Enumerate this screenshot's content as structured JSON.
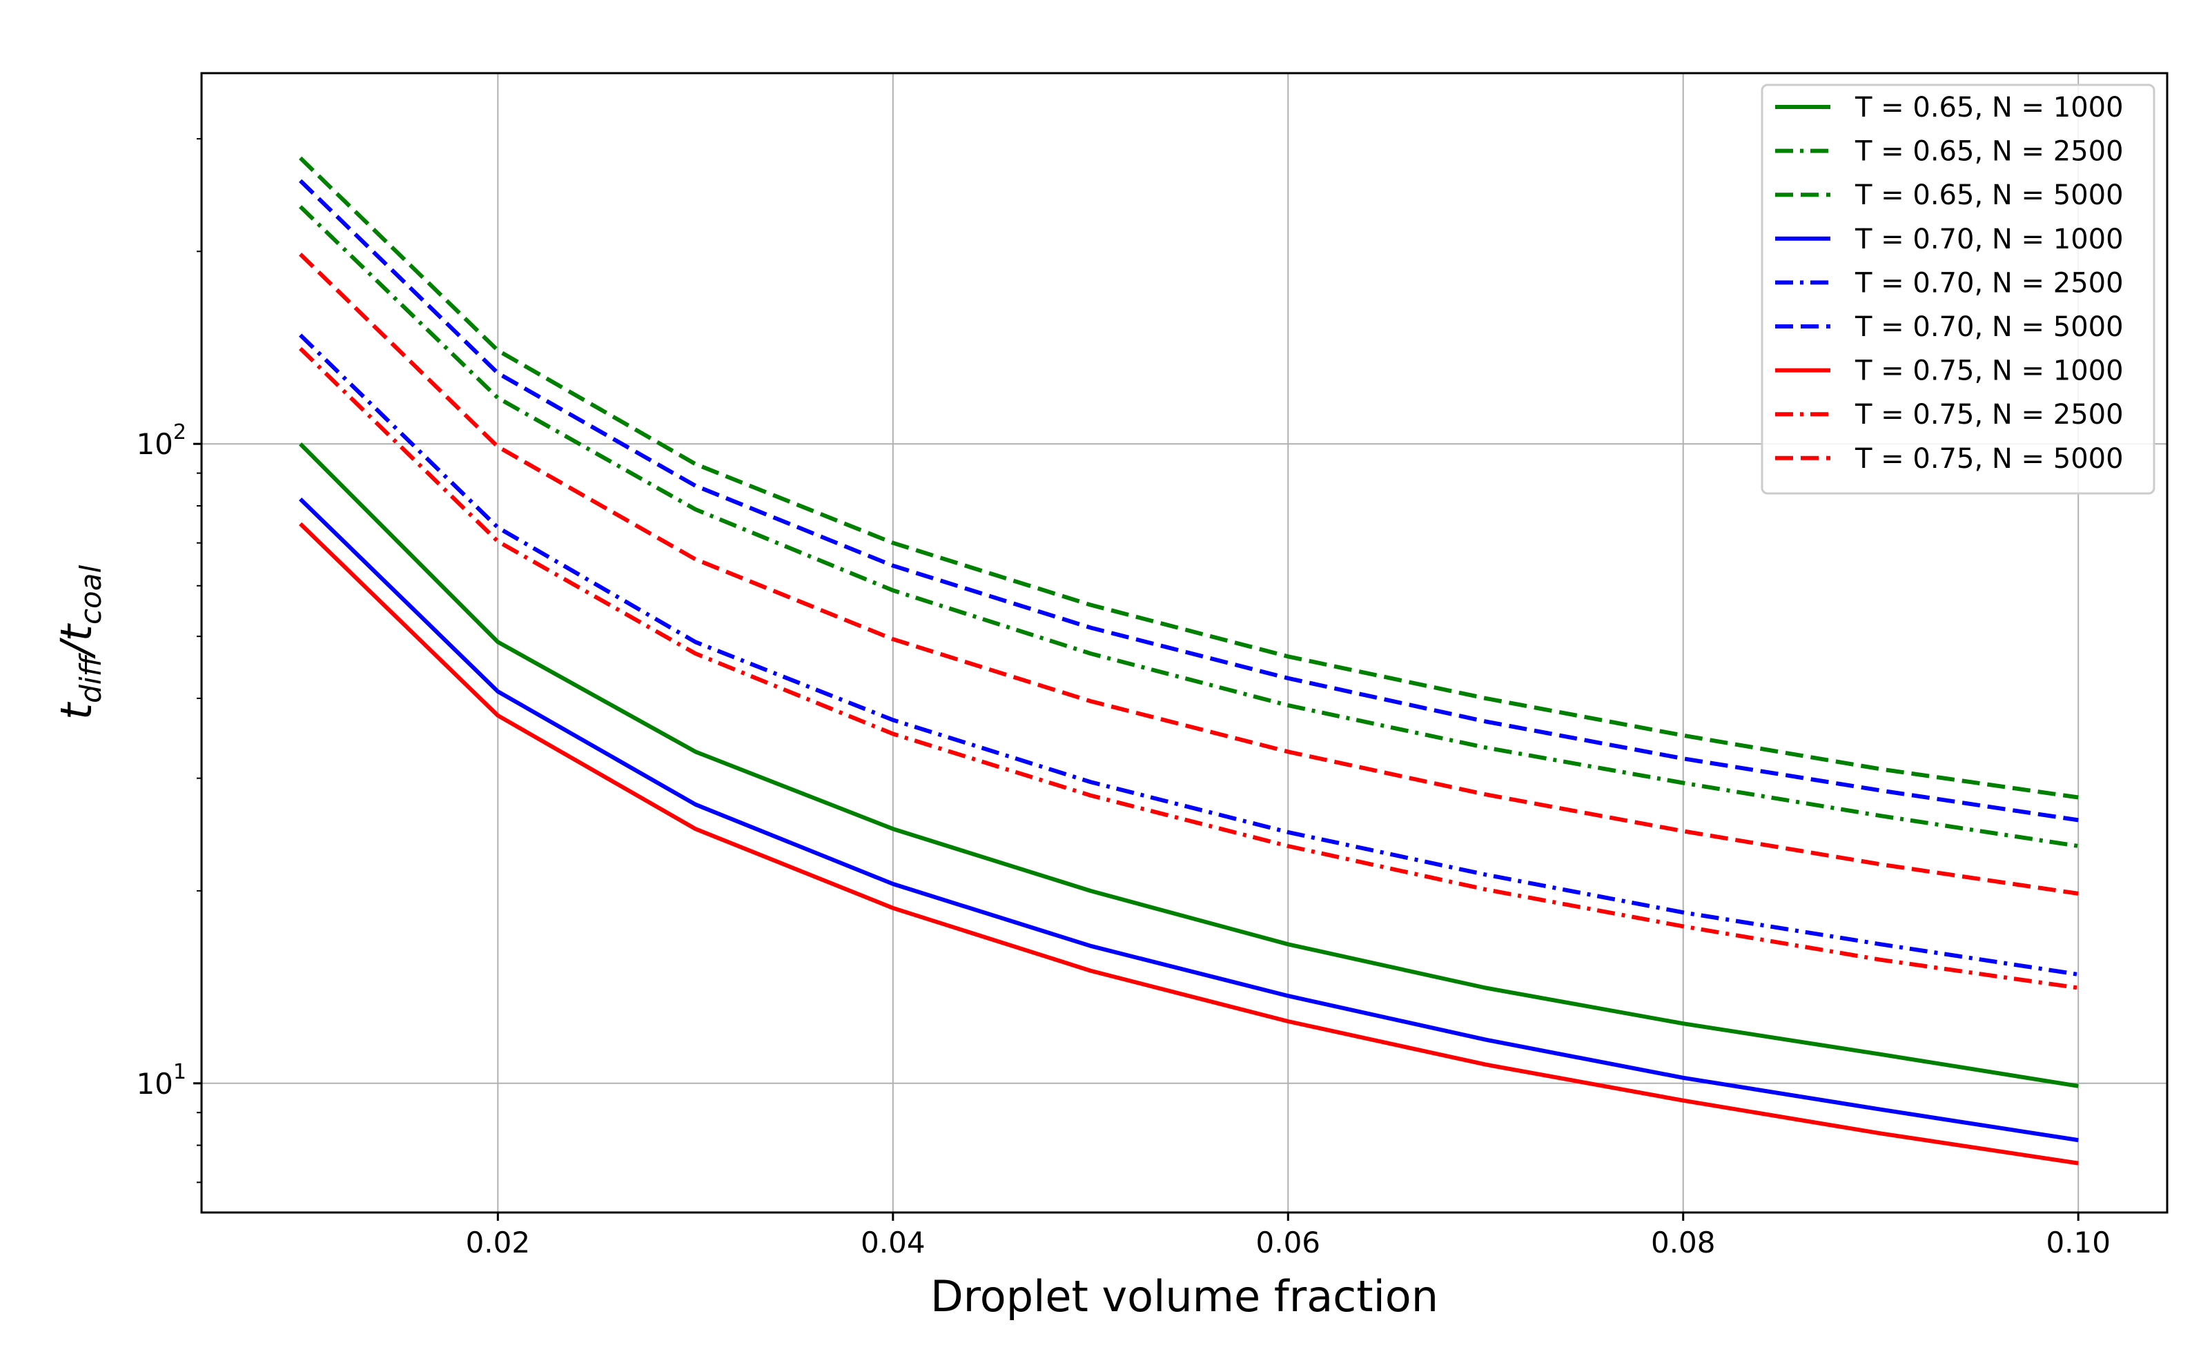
{
  "chart_data": {
    "type": "line",
    "title": "",
    "xlabel": "Droplet volume fraction",
    "ylabel_main_1": "t",
    "ylabel_sub_1": "diff",
    "ylabel_slash": "/",
    "ylabel_main_2": "t",
    "ylabel_sub_2": "coal",
    "yscale": "log",
    "xlim": [
      0.005,
      0.1045
    ],
    "ylim": [
      6.28,
      380
    ],
    "grid": true,
    "legend_position": "top-right",
    "x_ticks": [
      {
        "value": 0.02,
        "label": "0.02"
      },
      {
        "value": 0.04,
        "label": "0.04"
      },
      {
        "value": 0.06,
        "label": "0.06"
      },
      {
        "value": 0.08,
        "label": "0.08"
      },
      {
        "value": 0.1,
        "label": "0.10"
      }
    ],
    "y_ticks": [
      {
        "value": 10,
        "base": "10",
        "exp": "1"
      },
      {
        "value": 100,
        "base": "10",
        "exp": "2"
      }
    ],
    "x": [
      0.01,
      0.02,
      0.03,
      0.04,
      0.05,
      0.06,
      0.07,
      0.08,
      0.09,
      0.1
    ],
    "series": [
      {
        "name": "T = 0.65, N = 1000",
        "color": "#008000",
        "dash": "solid",
        "values": [
          100,
          49,
          33,
          25,
          20,
          16.5,
          14.1,
          12.4,
          11.1,
          9.9
        ]
      },
      {
        "name": "T = 0.65, N = 2500",
        "color": "#008000",
        "dash": "dashdot",
        "values": [
          235,
          118,
          79,
          59,
          47,
          39,
          33.5,
          29.5,
          26.2,
          23.5
        ]
      },
      {
        "name": "T = 0.65, N = 5000",
        "color": "#008000",
        "dash": "dashed",
        "values": [
          280,
          140,
          93,
          70,
          56,
          46.5,
          40,
          35,
          31,
          28
        ]
      },
      {
        "name": "T = 0.70, N = 1000",
        "color": "#0000ff",
        "dash": "solid",
        "values": [
          82,
          41,
          27.3,
          20.5,
          16.4,
          13.7,
          11.7,
          10.2,
          9.1,
          8.15
        ]
      },
      {
        "name": "T = 0.70, N = 2500",
        "color": "#0000ff",
        "dash": "dashdot",
        "values": [
          148,
          74,
          49,
          37,
          29.6,
          24.7,
          21.2,
          18.5,
          16.5,
          14.8
        ]
      },
      {
        "name": "T = 0.70, N = 5000",
        "color": "#0000ff",
        "dash": "dashed",
        "values": [
          258,
          129,
          86,
          64.5,
          51.6,
          43,
          36.8,
          32.2,
          28.7,
          25.8
        ]
      },
      {
        "name": "T = 0.75, N = 1000",
        "color": "#ff0000",
        "dash": "solid",
        "values": [
          75,
          37.6,
          25,
          18.8,
          15,
          12.5,
          10.7,
          9.4,
          8.35,
          7.5
        ]
      },
      {
        "name": "T = 0.75, N = 2500",
        "color": "#ff0000",
        "dash": "dashdot",
        "values": [
          141,
          70.4,
          47,
          35.2,
          28.2,
          23.5,
          20.1,
          17.6,
          15.6,
          14.1
        ]
      },
      {
        "name": "T = 0.75, N = 5000",
        "color": "#ff0000",
        "dash": "dashed",
        "values": [
          198,
          99,
          66,
          49.5,
          39.6,
          33,
          28.3,
          24.8,
          22,
          19.8
        ]
      }
    ]
  }
}
